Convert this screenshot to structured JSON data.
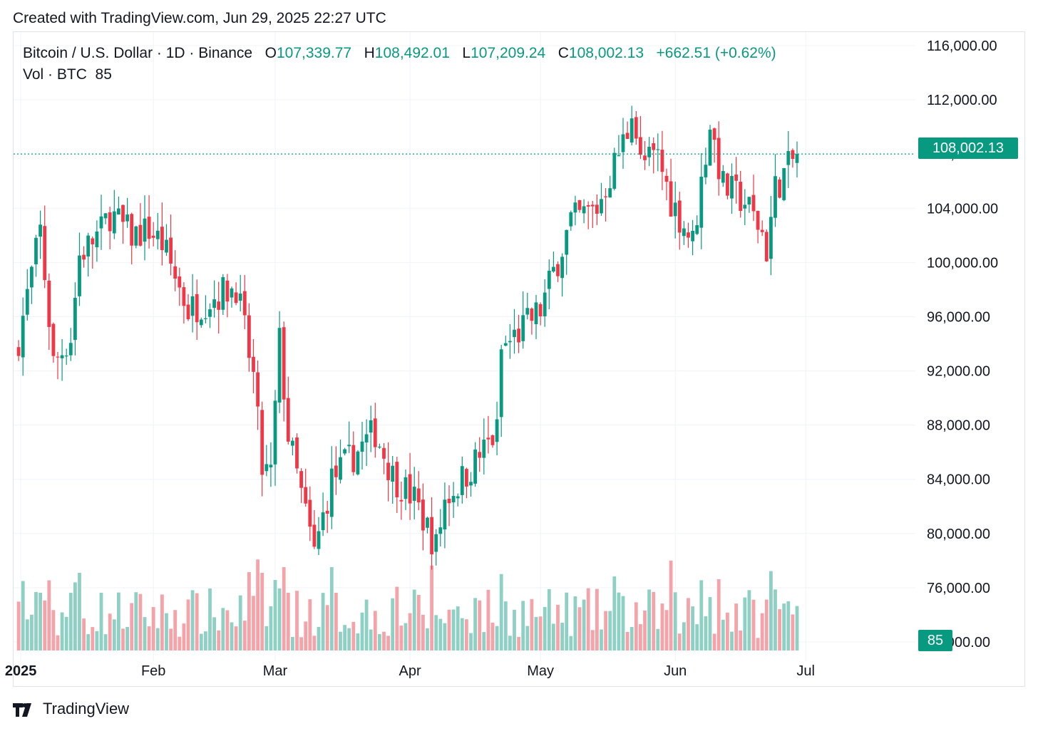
{
  "header": {
    "created_text": "Created with TradingView.com, Jun 29, 2025 22:27 UTC"
  },
  "legend": {
    "symbol": "Bitcoin / U.S. Dollar · 1D · Binance",
    "o_label": "O",
    "o_value": "107,339.77",
    "h_label": "H",
    "h_value": "108,492.01",
    "l_label": "L",
    "l_value": "107,209.24",
    "c_label": "C",
    "c_value": "108,002.13",
    "change": "+662.51 (+0.62%)",
    "vol_label": "Vol · BTC",
    "vol_value": "85"
  },
  "last_price_tag": "108,002.13",
  "volume_tag": "85",
  "brand": {
    "name": "TradingView"
  },
  "colors": {
    "up": "#089981",
    "down": "#f23645",
    "up_volume": "#8fd0c4",
    "down_volume": "#f5a3a9",
    "grid": "#f0f3fa"
  },
  "chart_data": {
    "type": "candlestick",
    "title": "Bitcoin / U.S. Dollar · 1D · Binance",
    "y_axis_ticks": [
      "116,000.00",
      "112,000.00",
      "108,000.00",
      "104,000.00",
      "100,000.00",
      "96,000.00",
      "92,000.00",
      "88,000.00",
      "84,000.00",
      "80,000.00",
      "76,000.00",
      "72,000.00"
    ],
    "x_axis_ticks": [
      "2025",
      "Feb",
      "Mar",
      "Apr",
      "May",
      "Jun",
      "Jul"
    ],
    "ylim": [
      71000,
      117000
    ],
    "grid": true,
    "last_close": 108002.13,
    "anchor_closes": [
      [
        "2025-01-01",
        94400
      ],
      [
        "2025-01-06",
        102300
      ],
      [
        "2025-01-09",
        92500
      ],
      [
        "2025-01-13",
        94500
      ],
      [
        "2025-01-15",
        100500
      ],
      [
        "2025-01-20",
        102300
      ],
      [
        "2025-01-22",
        103600
      ],
      [
        "2025-01-27",
        102000
      ],
      [
        "2025-01-31",
        102400
      ],
      [
        "2025-02-03",
        101400
      ],
      [
        "2025-02-09",
        96500
      ],
      [
        "2025-02-20",
        98300
      ],
      [
        "2025-02-24",
        91500
      ],
      [
        "2025-02-26",
        84700
      ],
      [
        "2025-02-28",
        84300
      ],
      [
        "2025-03-02",
        94200
      ],
      [
        "2025-03-04",
        87200
      ],
      [
        "2025-03-10",
        78500
      ],
      [
        "2025-03-14",
        84000
      ],
      [
        "2025-03-24",
        87500
      ],
      [
        "2025-03-28",
        84300
      ],
      [
        "2025-04-02",
        82500
      ],
      [
        "2025-04-07",
        79000
      ],
      [
        "2025-04-09",
        82500
      ],
      [
        "2025-04-13",
        84000
      ],
      [
        "2025-04-21",
        87500
      ],
      [
        "2025-04-22",
        93500
      ],
      [
        "2025-05-01",
        96500
      ],
      [
        "2025-05-08",
        103000
      ],
      [
        "2025-05-14",
        104000
      ],
      [
        "2025-05-21",
        109700
      ],
      [
        "2025-05-22",
        111700
      ],
      [
        "2025-05-24",
        107300
      ],
      [
        "2025-05-28",
        107800
      ],
      [
        "2025-05-31",
        104600
      ],
      [
        "2025-06-05",
        101500
      ],
      [
        "2025-06-09",
        110300
      ],
      [
        "2025-06-12",
        105600
      ],
      [
        "2025-06-17",
        104500
      ],
      [
        "2025-06-21",
        102200
      ],
      [
        "2025-06-22",
        100900
      ],
      [
        "2025-06-24",
        105500
      ],
      [
        "2025-06-29",
        108002.13
      ]
    ],
    "volume_ylim": [
      0,
      40000
    ]
  }
}
